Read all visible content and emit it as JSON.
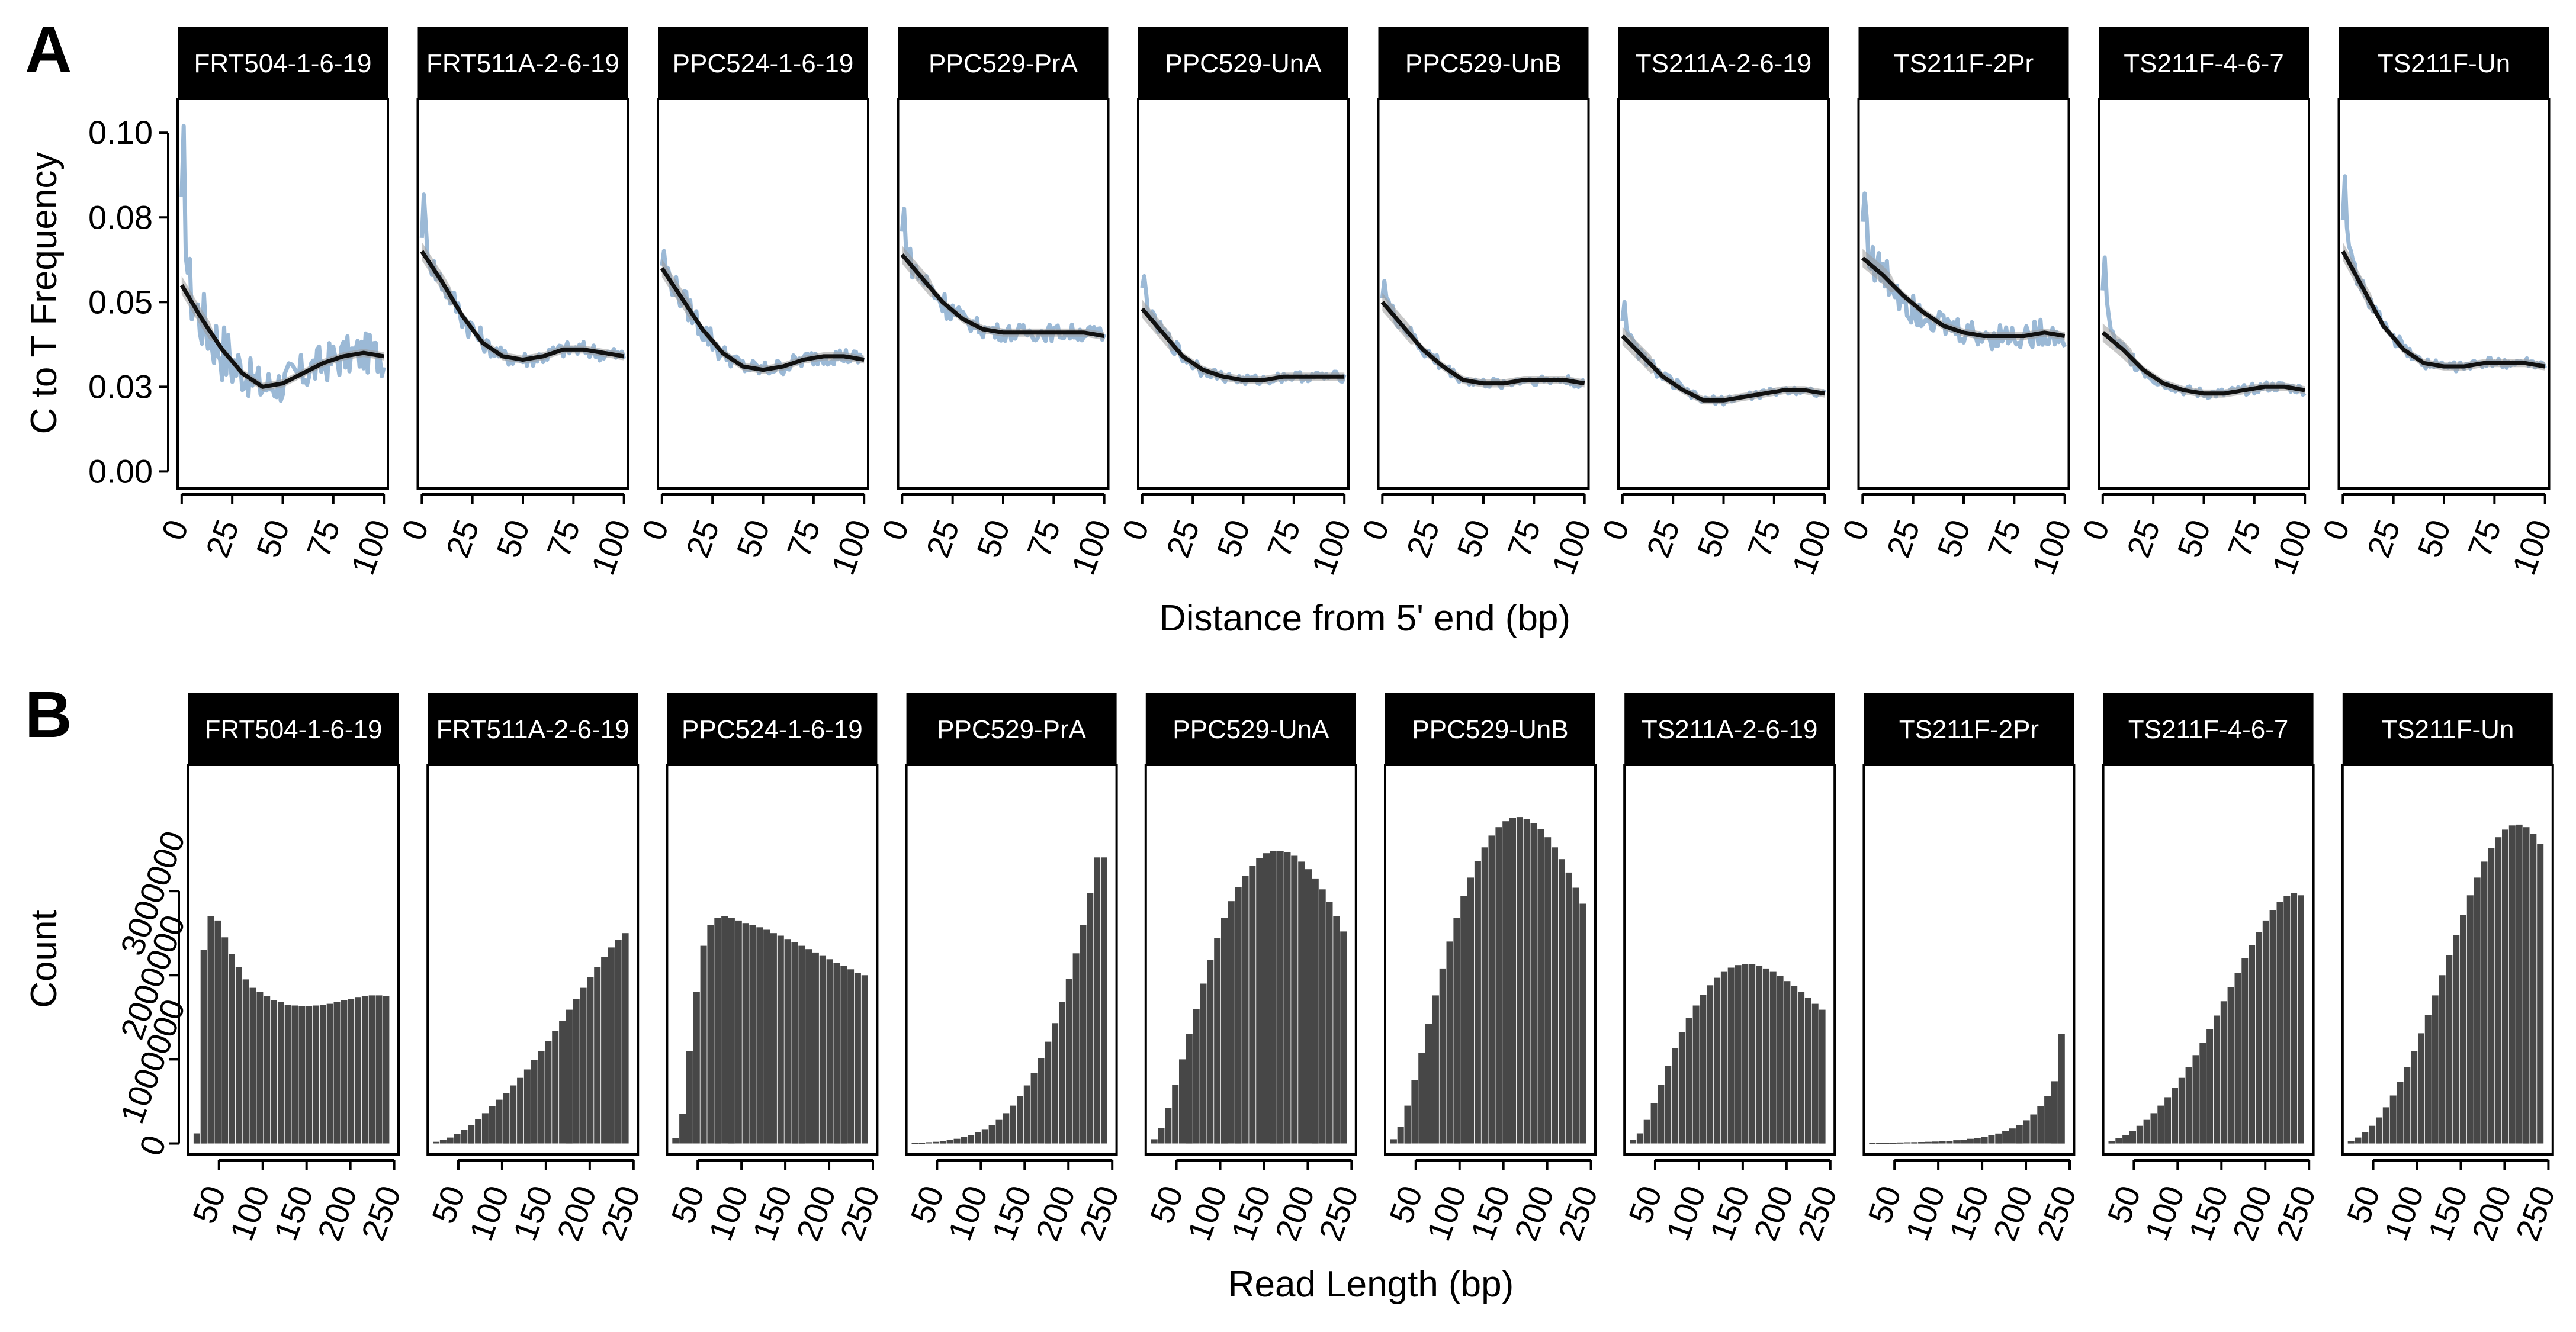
{
  "figure": {
    "panel_labels": [
      "A",
      "B"
    ]
  },
  "chart_data": [
    {
      "panel": "A",
      "type": "line",
      "facets": [
        "FRT504-1-6-19",
        "FRT511A-2-6-19",
        "PPC524-1-6-19",
        "PPC529-PrA",
        "PPC529-UnA",
        "PPC529-UnB",
        "TS211A-2-6-19",
        "TS211F-2Pr",
        "TS211F-4-6-7",
        "TS211F-Un"
      ],
      "xlabel": "Distance from 5' end (bp)",
      "ylabel": "C to T Frequency",
      "xlim": [
        -2,
        102
      ],
      "ylim": [
        -0.005,
        0.11
      ],
      "xticks": [
        0,
        25,
        50,
        75,
        100
      ],
      "xtick_labels": [
        "0",
        "25",
        "50",
        "75",
        "100"
      ],
      "yticks": [
        0.0,
        0.025,
        0.05,
        0.075,
        0.1
      ],
      "ytick_labels": [
        "0.00",
        "0.03",
        "0.05",
        "0.08",
        "0.10"
      ],
      "colors": {
        "raw": "#9bb9d6",
        "ribbon": "#9a9a9a",
        "smooth": "#111111"
      },
      "smooth_x": [
        0,
        10,
        20,
        30,
        40,
        50,
        60,
        70,
        80,
        90,
        100
      ],
      "series": [
        {
          "facet": "FRT504-1-6-19",
          "raw_peak": 0.095,
          "noise": 0.006,
          "smooth": [
            0.055,
            0.045,
            0.036,
            0.029,
            0.025,
            0.026,
            0.029,
            0.032,
            0.034,
            0.035,
            0.034
          ]
        },
        {
          "facet": "FRT511A-2-6-19",
          "raw_peak": 0.08,
          "noise": 0.0025,
          "smooth": [
            0.065,
            0.056,
            0.046,
            0.038,
            0.034,
            0.033,
            0.034,
            0.036,
            0.036,
            0.035,
            0.034
          ]
        },
        {
          "facet": "PPC524-1-6-19",
          "raw_peak": 0.064,
          "noise": 0.0025,
          "smooth": [
            0.06,
            0.051,
            0.042,
            0.035,
            0.031,
            0.03,
            0.031,
            0.033,
            0.034,
            0.034,
            0.033
          ]
        },
        {
          "facet": "PPC529-PrA",
          "raw_peak": 0.077,
          "noise": 0.0025,
          "smooth": [
            0.064,
            0.057,
            0.05,
            0.045,
            0.042,
            0.041,
            0.041,
            0.041,
            0.041,
            0.041,
            0.04
          ]
        },
        {
          "facet": "PPC529-UnA",
          "raw_peak": 0.058,
          "noise": 0.0015,
          "smooth": [
            0.048,
            0.041,
            0.034,
            0.03,
            0.028,
            0.027,
            0.027,
            0.028,
            0.028,
            0.028,
            0.028
          ]
        },
        {
          "facet": "PPC529-UnB",
          "raw_peak": 0.057,
          "noise": 0.0015,
          "smooth": [
            0.05,
            0.043,
            0.036,
            0.031,
            0.027,
            0.026,
            0.026,
            0.027,
            0.027,
            0.027,
            0.026
          ]
        },
        {
          "facet": "TS211A-2-6-19",
          "raw_peak": 0.051,
          "noise": 0.0012,
          "smooth": [
            0.04,
            0.034,
            0.028,
            0.024,
            0.021,
            0.021,
            0.022,
            0.023,
            0.024,
            0.024,
            0.023
          ]
        },
        {
          "facet": "TS211F-2Pr",
          "raw_peak": 0.085,
          "noise": 0.004,
          "smooth": [
            0.063,
            0.058,
            0.052,
            0.047,
            0.043,
            0.041,
            0.04,
            0.04,
            0.04,
            0.041,
            0.04
          ]
        },
        {
          "facet": "TS211F-4-6-7",
          "raw_peak": 0.065,
          "noise": 0.0015,
          "smooth": [
            0.041,
            0.036,
            0.03,
            0.026,
            0.024,
            0.023,
            0.023,
            0.024,
            0.025,
            0.025,
            0.024
          ]
        },
        {
          "facet": "TS211F-Un",
          "raw_peak": 0.09,
          "noise": 0.0015,
          "smooth": [
            0.065,
            0.054,
            0.043,
            0.036,
            0.032,
            0.031,
            0.031,
            0.032,
            0.032,
            0.032,
            0.031
          ]
        }
      ]
    },
    {
      "panel": "B",
      "type": "bar",
      "facets": [
        "FRT504-1-6-19",
        "FRT511A-2-6-19",
        "PPC524-1-6-19",
        "PPC529-PrA",
        "PPC529-UnA",
        "PPC529-UnB",
        "TS211A-2-6-19",
        "TS211F-2Pr",
        "TS211F-4-6-7",
        "TS211F-Un"
      ],
      "xlabel": "Read Length (bp)",
      "ylabel": "Count",
      "xlim": [
        15,
        255
      ],
      "ylim": [
        -130000,
        4500000
      ],
      "xticks": [
        50,
        100,
        150,
        200,
        250
      ],
      "xtick_labels": [
        "50",
        "100",
        "150",
        "200",
        "250"
      ],
      "yticks": [
        0,
        1000000,
        2000000,
        3000000
      ],
      "ytick_labels": [
        "0",
        "1000000",
        "2000000",
        "3000000"
      ],
      "bar_color": "#474747",
      "bin_centers": [
        25,
        33,
        41,
        49,
        57,
        65,
        73,
        81,
        89,
        97,
        105,
        113,
        121,
        129,
        137,
        145,
        153,
        161,
        169,
        177,
        185,
        193,
        201,
        209,
        217,
        225,
        233,
        241
      ],
      "series": [
        {
          "facet": "FRT504-1-6-19",
          "values": [
            120000,
            2300000,
            2700000,
            2650000,
            2450000,
            2250000,
            2100000,
            1950000,
            1850000,
            1800000,
            1750000,
            1700000,
            1680000,
            1650000,
            1640000,
            1630000,
            1630000,
            1640000,
            1650000,
            1660000,
            1680000,
            1700000,
            1720000,
            1740000,
            1750000,
            1760000,
            1760000,
            1750000
          ]
        },
        {
          "facet": "FRT511A-2-6-19",
          "values": [
            20000,
            40000,
            70000,
            110000,
            160000,
            220000,
            290000,
            360000,
            440000,
            520000,
            600000,
            690000,
            780000,
            880000,
            990000,
            1100000,
            1220000,
            1340000,
            1460000,
            1590000,
            1720000,
            1850000,
            1980000,
            2100000,
            2220000,
            2330000,
            2420000,
            2500000
          ]
        },
        {
          "facet": "PPC524-1-6-19",
          "values": [
            60000,
            350000,
            1100000,
            1800000,
            2350000,
            2600000,
            2680000,
            2700000,
            2680000,
            2650000,
            2620000,
            2600000,
            2570000,
            2540000,
            2500000,
            2470000,
            2430000,
            2390000,
            2350000,
            2310000,
            2270000,
            2230000,
            2190000,
            2150000,
            2110000,
            2070000,
            2030000,
            2000000
          ]
        },
        {
          "facet": "PPC529-PrA",
          "values": [
            10000,
            10000,
            15000,
            20000,
            30000,
            40000,
            55000,
            75000,
            100000,
            130000,
            170000,
            220000,
            280000,
            360000,
            450000,
            560000,
            690000,
            840000,
            1010000,
            1210000,
            1430000,
            1680000,
            1960000,
            2260000,
            2600000,
            2980000,
            3400000,
            3400000
          ]
        },
        {
          "facet": "PPC529-UnA",
          "values": [
            50000,
            180000,
            420000,
            700000,
            1000000,
            1300000,
            1600000,
            1900000,
            2180000,
            2440000,
            2680000,
            2880000,
            3050000,
            3180000,
            3300000,
            3390000,
            3450000,
            3480000,
            3480000,
            3460000,
            3420000,
            3350000,
            3260000,
            3150000,
            3020000,
            2870000,
            2700000,
            2520000
          ]
        },
        {
          "facet": "PPC529-UnB",
          "values": [
            50000,
            200000,
            450000,
            750000,
            1080000,
            1420000,
            1760000,
            2080000,
            2400000,
            2680000,
            2940000,
            3160000,
            3360000,
            3520000,
            3660000,
            3760000,
            3830000,
            3870000,
            3880000,
            3860000,
            3810000,
            3740000,
            3640000,
            3520000,
            3380000,
            3220000,
            3040000,
            2850000
          ]
        },
        {
          "facet": "TS211A-2-6-19",
          "values": [
            40000,
            120000,
            280000,
            480000,
            700000,
            920000,
            1130000,
            1320000,
            1490000,
            1640000,
            1770000,
            1880000,
            1970000,
            2040000,
            2090000,
            2120000,
            2130000,
            2130000,
            2110000,
            2080000,
            2040000,
            1990000,
            1930000,
            1870000,
            1800000,
            1730000,
            1660000,
            1590000
          ]
        },
        {
          "facet": "TS211F-2Pr",
          "values": [
            10000,
            10000,
            10000,
            10000,
            12000,
            14000,
            16000,
            18000,
            20000,
            23000,
            27000,
            32000,
            38000,
            45000,
            55000,
            66000,
            80000,
            97000,
            118000,
            145000,
            178000,
            220000,
            275000,
            345000,
            440000,
            560000,
            740000,
            1300000
          ]
        },
        {
          "facet": "TS211F-4-6-7",
          "values": [
            30000,
            60000,
            100000,
            150000,
            210000,
            280000,
            360000,
            450000,
            550000,
            660000,
            780000,
            910000,
            1050000,
            1200000,
            1360000,
            1520000,
            1690000,
            1860000,
            2030000,
            2200000,
            2360000,
            2510000,
            2650000,
            2770000,
            2870000,
            2940000,
            2980000,
            2950000
          ]
        },
        {
          "facet": "TS211F-Un",
          "values": [
            30000,
            70000,
            130000,
            210000,
            310000,
            430000,
            570000,
            730000,
            910000,
            1100000,
            1310000,
            1530000,
            1760000,
            2000000,
            2240000,
            2480000,
            2720000,
            2950000,
            3160000,
            3350000,
            3510000,
            3640000,
            3730000,
            3780000,
            3790000,
            3760000,
            3680000,
            3560000
          ]
        }
      ]
    }
  ]
}
